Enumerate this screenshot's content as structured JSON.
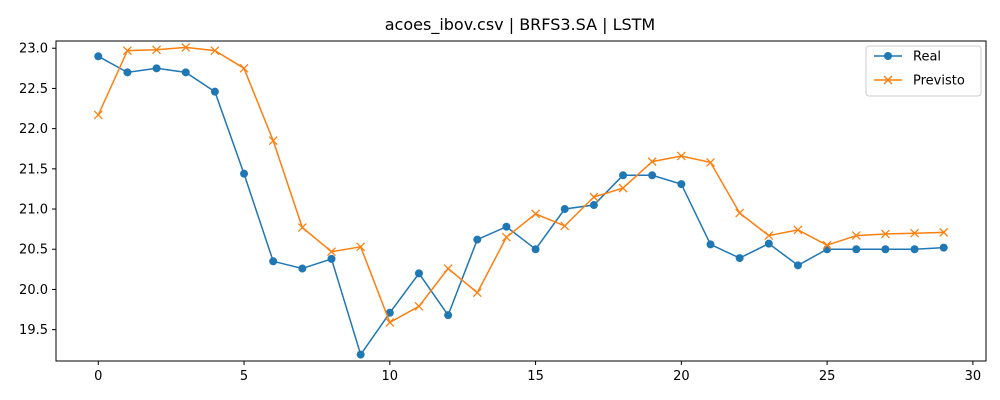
{
  "chart_data": {
    "type": "line",
    "title": "acoes_ibov.csv | BRFS3.SA | LSTM",
    "xlabel": "",
    "ylabel": "",
    "xlim": [
      -1.45,
      30.45
    ],
    "ylim": [
      19.11,
      23.09
    ],
    "xticks": [
      0,
      5,
      10,
      15,
      20,
      25,
      30
    ],
    "yticks": [
      19.5,
      20.0,
      20.5,
      21.0,
      21.5,
      22.0,
      22.5,
      23.0
    ],
    "grid": false,
    "legend": "top-right",
    "x": [
      0,
      1,
      2,
      3,
      4,
      5,
      6,
      7,
      8,
      9,
      10,
      11,
      12,
      13,
      14,
      15,
      16,
      17,
      18,
      19,
      20,
      21,
      22,
      23,
      24,
      25,
      26,
      27,
      28,
      29
    ],
    "series": [
      {
        "name": "Real",
        "color": "#1f77b4",
        "marker": "circle",
        "values": [
          22.9,
          22.7,
          22.75,
          22.7,
          22.46,
          21.44,
          20.35,
          20.26,
          20.38,
          19.19,
          19.71,
          20.2,
          19.68,
          20.62,
          20.78,
          20.5,
          21.0,
          21.05,
          21.42,
          21.42,
          21.31,
          20.56,
          20.39,
          20.57,
          20.3,
          20.5,
          20.5,
          20.5,
          20.5,
          20.52
        ]
      },
      {
        "name": "Previsto",
        "color": "#ff7f0e",
        "marker": "x",
        "values": [
          22.17,
          22.97,
          22.98,
          23.01,
          22.97,
          22.75,
          21.85,
          20.77,
          20.47,
          20.53,
          19.59,
          19.79,
          20.26,
          19.96,
          20.65,
          20.94,
          20.79,
          21.15,
          21.26,
          21.59,
          21.66,
          21.58,
          20.95,
          20.67,
          20.74,
          20.55,
          20.67,
          20.69,
          20.7,
          20.71
        ]
      }
    ]
  }
}
